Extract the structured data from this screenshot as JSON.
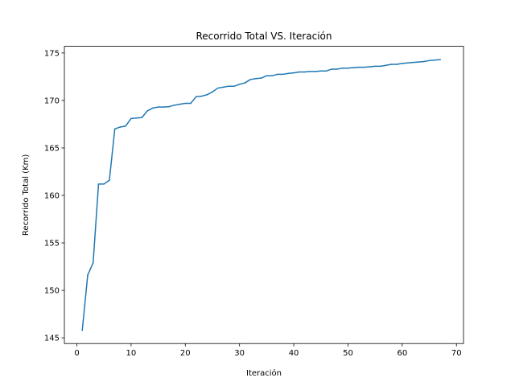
{
  "chart_data": {
    "type": "line",
    "title": "Recorrido Total VS. Iteración",
    "xlabel": "Iteración",
    "ylabel": "Recorrido Total (Km)",
    "xlim": [
      -2.3,
      71.3
    ],
    "ylim": [
      144.4,
      175.7
    ],
    "xticks": [
      0,
      10,
      20,
      30,
      40,
      50,
      60,
      70
    ],
    "yticks": [
      145,
      150,
      155,
      160,
      165,
      170,
      175
    ],
    "grid": false,
    "legend": "none",
    "series": [
      {
        "color": "#1f77b4",
        "x": [
          1,
          2,
          3,
          4,
          5,
          6,
          7,
          8,
          9,
          10,
          11,
          12,
          13,
          14,
          15,
          16,
          17,
          18,
          19,
          20,
          21,
          22,
          23,
          24,
          25,
          26,
          27,
          28,
          29,
          30,
          31,
          32,
          33,
          34,
          35,
          36,
          37,
          38,
          39,
          40,
          41,
          42,
          43,
          44,
          45,
          46,
          47,
          48,
          49,
          50,
          51,
          52,
          53,
          54,
          55,
          56,
          57,
          58,
          59,
          60,
          61,
          62,
          63,
          64,
          65,
          66,
          67
        ],
        "y": [
          145.8,
          151.6,
          152.9,
          161.2,
          161.2,
          161.6,
          167.0,
          167.2,
          167.3,
          168.1,
          168.15,
          168.2,
          168.9,
          169.2,
          169.3,
          169.3,
          169.35,
          169.5,
          169.6,
          169.7,
          169.7,
          170.4,
          170.45,
          170.6,
          170.9,
          171.3,
          171.4,
          171.5,
          171.5,
          171.7,
          171.85,
          172.2,
          172.3,
          172.35,
          172.6,
          172.6,
          172.75,
          172.75,
          172.85,
          172.9,
          173.0,
          173.0,
          173.05,
          173.05,
          173.1,
          173.1,
          173.3,
          173.3,
          173.4,
          173.4,
          173.45,
          173.5,
          173.5,
          173.55,
          173.6,
          173.6,
          173.7,
          173.8,
          173.8,
          173.9,
          173.95,
          174.0,
          174.05,
          174.1,
          174.2,
          174.25,
          174.3
        ]
      }
    ]
  }
}
